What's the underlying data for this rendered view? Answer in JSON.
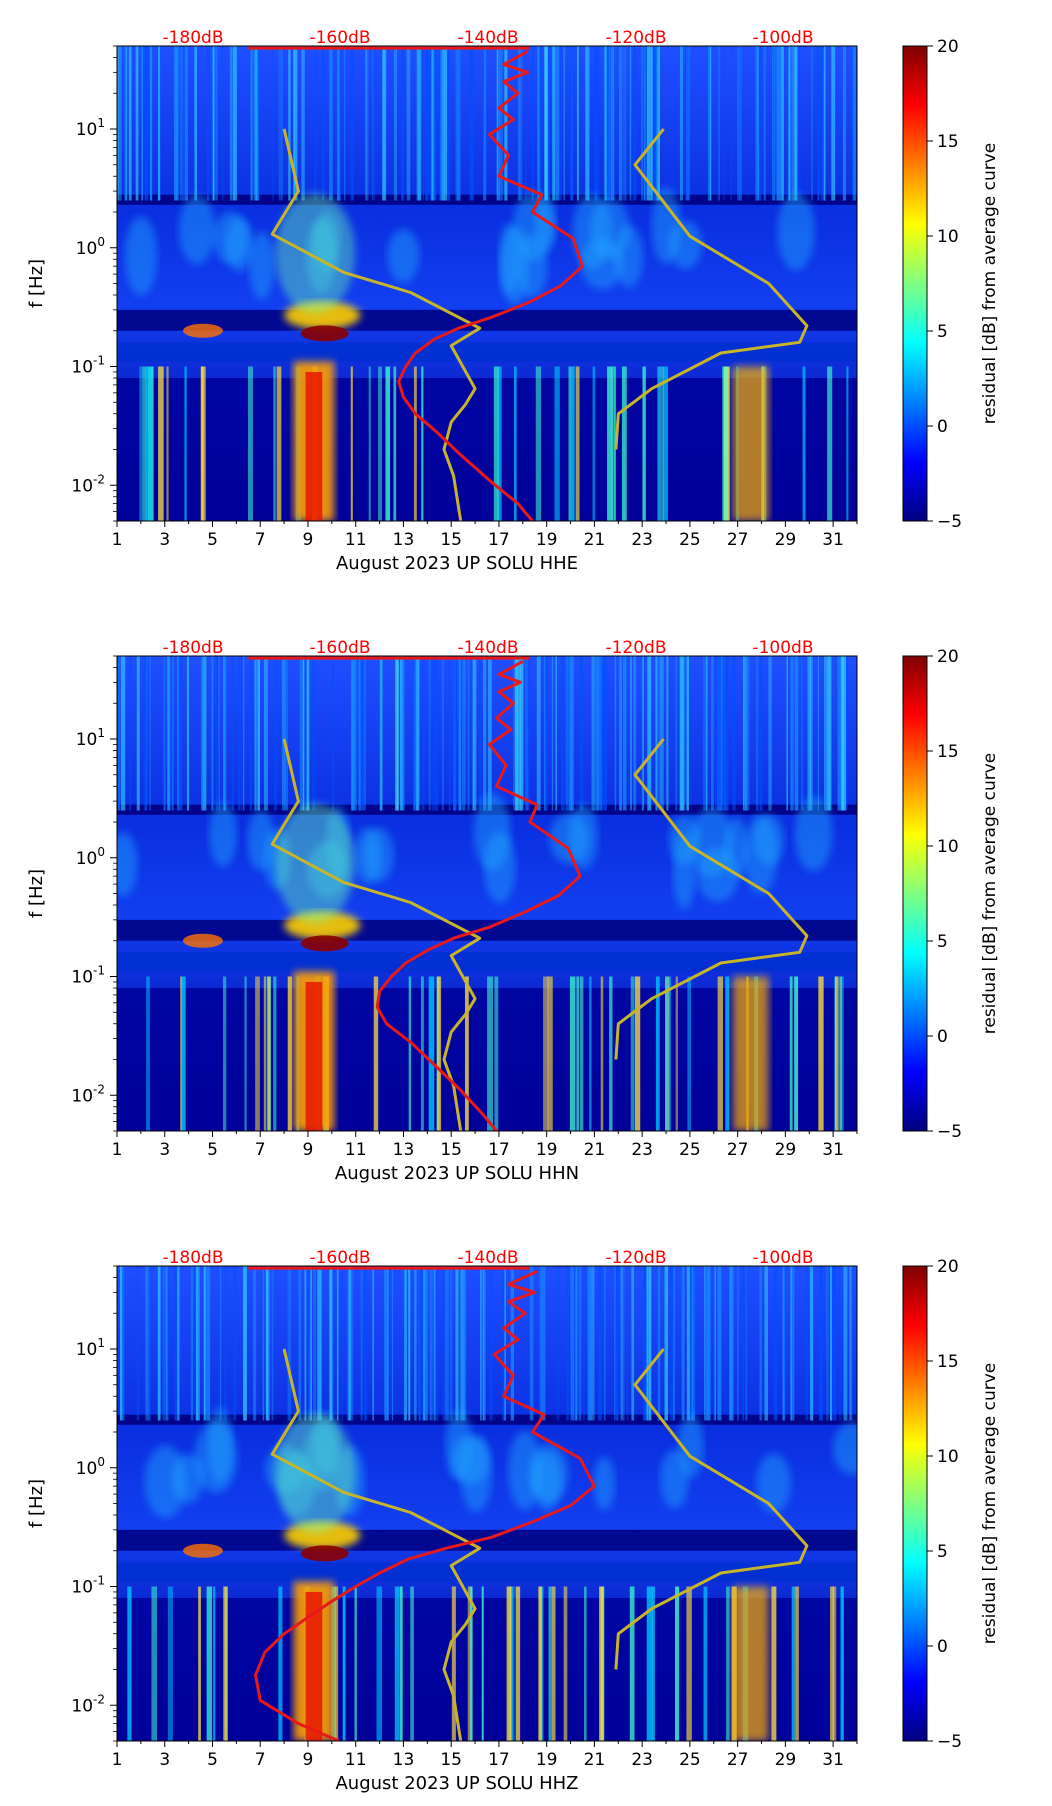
{
  "colorbar": {
    "label": "residual [dB] from average curve",
    "ticks": [
      -5,
      0,
      5,
      10,
      15,
      20
    ],
    "colors": [
      "#00007f",
      "#0000ff",
      "#007fff",
      "#00ffff",
      "#7fff7f",
      "#ffff00",
      "#ff7f00",
      "#ff0000",
      "#7f0000"
    ]
  },
  "colors": {
    "noise_models": "#c8b428",
    "psd_curve": "#e8191b",
    "db_scale_text": "#ff0000",
    "background": "#00008f"
  },
  "chart_data": [
    {
      "type": "heatmap",
      "xlabel": "August 2023 UP SOLU  HHE",
      "ylabel": "f [Hz]",
      "xticks": [
        "1",
        "3",
        "5",
        "7",
        "9",
        "11",
        "13",
        "15",
        "17",
        "19",
        "21",
        "23",
        "25",
        "27",
        "29",
        "31"
      ],
      "yticks": [
        "10^-2",
        "10^-1",
        "10^0",
        "10^1"
      ],
      "xlim": [
        1,
        32
      ],
      "ylim": [
        0.005,
        50
      ],
      "yscale": "log",
      "top_scale_labels": [
        "-180dB",
        "-160dB",
        "-140dB",
        "-120dB",
        "-100dB"
      ],
      "series": [
        {
          "x": [
            8.0,
            8.6,
            7.5,
            10.5,
            13.3,
            16.2,
            15.0,
            16.0,
            15.6,
            15.0,
            14.7,
            15.1,
            15.4
          ],
          "y": [
            10,
            3.0,
            1.3,
            0.62,
            0.42,
            0.21,
            0.15,
            0.065,
            0.048,
            0.034,
            0.02,
            0.012,
            0.005
          ]
        },
        {
          "x": [
            23.9,
            22.7,
            25.0,
            28.3,
            29.9,
            29.6,
            26.3,
            23.4,
            22.0,
            21.9
          ],
          "y": [
            10,
            5,
            1.25,
            0.5,
            0.22,
            0.16,
            0.13,
            0.065,
            0.04,
            0.02
          ]
        },
        {
          "x": [
            18.2,
            17.2,
            18.2,
            17.2,
            17.8,
            17.0,
            17.6,
            16.6,
            17.4,
            17.0,
            18.8,
            18.4,
            20.1,
            20.5,
            19.6,
            18.3,
            16.7,
            15.3,
            14.3,
            13.5,
            13.1,
            12.8,
            13.0,
            13.5,
            14.4,
            15.4,
            16.6,
            17.8,
            18.4
          ],
          "y": [
            45,
            35,
            30,
            25,
            20,
            15,
            12,
            9,
            6,
            4,
            2.8,
            2.0,
            1.2,
            0.7,
            0.48,
            0.35,
            0.26,
            0.21,
            0.17,
            0.13,
            0.1,
            0.075,
            0.055,
            0.04,
            0.028,
            0.018,
            0.011,
            0.007,
            0.005
          ]
        }
      ]
    },
    {
      "type": "heatmap",
      "xlabel": "August 2023 UP SOLU  HHN",
      "ylabel": "f [Hz]",
      "xticks": [
        "1",
        "3",
        "5",
        "7",
        "9",
        "11",
        "13",
        "15",
        "17",
        "19",
        "21",
        "23",
        "25",
        "27",
        "29",
        "31"
      ],
      "yticks": [
        "10^-2",
        "10^-1",
        "10^0",
        "10^1"
      ],
      "xlim": [
        1,
        32
      ],
      "ylim": [
        0.005,
        50
      ],
      "yscale": "log",
      "top_scale_labels": [
        "-180dB",
        "-160dB",
        "-140dB",
        "-120dB",
        "-100dB"
      ],
      "series": [
        {
          "x": [
            8.0,
            8.6,
            7.5,
            10.5,
            13.3,
            16.2,
            15.0,
            16.0,
            15.6,
            15.0,
            14.7,
            15.1,
            15.4
          ],
          "y": [
            10,
            3.0,
            1.3,
            0.62,
            0.42,
            0.21,
            0.15,
            0.065,
            0.048,
            0.034,
            0.02,
            0.012,
            0.005
          ]
        },
        {
          "x": [
            23.9,
            22.7,
            25.0,
            28.3,
            29.9,
            29.6,
            26.3,
            23.4,
            22.0,
            21.9
          ],
          "y": [
            10,
            5,
            1.25,
            0.5,
            0.22,
            0.16,
            0.13,
            0.065,
            0.04,
            0.02
          ]
        },
        {
          "x": [
            18.0,
            17.0,
            17.9,
            17.0,
            17.6,
            16.9,
            17.5,
            16.6,
            17.3,
            16.9,
            18.6,
            18.3,
            19.9,
            20.4,
            19.5,
            18.1,
            16.6,
            15.1,
            14.1,
            13.1,
            12.5,
            12.0,
            11.9,
            12.3,
            13.3,
            14.3,
            15.4,
            16.3,
            16.9
          ],
          "y": [
            45,
            35,
            30,
            25,
            20,
            15,
            12,
            9,
            6,
            4,
            2.8,
            2.0,
            1.2,
            0.7,
            0.48,
            0.35,
            0.26,
            0.21,
            0.17,
            0.13,
            0.1,
            0.075,
            0.055,
            0.04,
            0.028,
            0.018,
            0.011,
            0.007,
            0.005
          ]
        }
      ]
    },
    {
      "type": "heatmap",
      "xlabel": "August 2023 UP SOLU  HHZ",
      "ylabel": "f [Hz]",
      "xticks": [
        "1",
        "3",
        "5",
        "7",
        "9",
        "11",
        "13",
        "15",
        "17",
        "19",
        "21",
        "23",
        "25",
        "27",
        "29",
        "31"
      ],
      "yticks": [
        "10^-2",
        "10^-1",
        "10^0",
        "10^1"
      ],
      "xlim": [
        1,
        32
      ],
      "ylim": [
        0.005,
        50
      ],
      "yscale": "log",
      "top_scale_labels": [
        "-180dB",
        "-160dB",
        "-140dB",
        "-120dB",
        "-100dB"
      ],
      "series": [
        {
          "x": [
            8.0,
            8.6,
            7.5,
            10.5,
            13.3,
            16.2,
            15.0,
            16.0,
            15.6,
            15.0,
            14.7,
            15.1,
            15.4
          ],
          "y": [
            10,
            3.0,
            1.3,
            0.62,
            0.42,
            0.21,
            0.15,
            0.065,
            0.048,
            0.034,
            0.02,
            0.012,
            0.005
          ]
        },
        {
          "x": [
            23.9,
            22.7,
            25.0,
            28.3,
            29.9,
            29.6,
            26.3,
            23.4,
            22.0,
            21.9
          ],
          "y": [
            10,
            5,
            1.25,
            0.5,
            0.22,
            0.16,
            0.13,
            0.065,
            0.04,
            0.02
          ]
        },
        {
          "x": [
            18.6,
            17.4,
            18.5,
            17.4,
            18.1,
            17.2,
            17.8,
            16.8,
            17.6,
            17.2,
            18.9,
            18.4,
            20.4,
            21.0,
            20.0,
            18.4,
            16.7,
            14.8,
            13.2,
            12.0,
            11.0,
            10.0,
            9.0,
            8.0,
            7.2,
            6.8,
            7.0,
            8.6,
            10.3
          ],
          "y": [
            45,
            35,
            30,
            25,
            20,
            15,
            12,
            9,
            6,
            4,
            2.8,
            2.0,
            1.2,
            0.7,
            0.48,
            0.35,
            0.26,
            0.21,
            0.17,
            0.13,
            0.1,
            0.075,
            0.055,
            0.04,
            0.028,
            0.018,
            0.011,
            0.007,
            0.005
          ]
        }
      ]
    }
  ]
}
